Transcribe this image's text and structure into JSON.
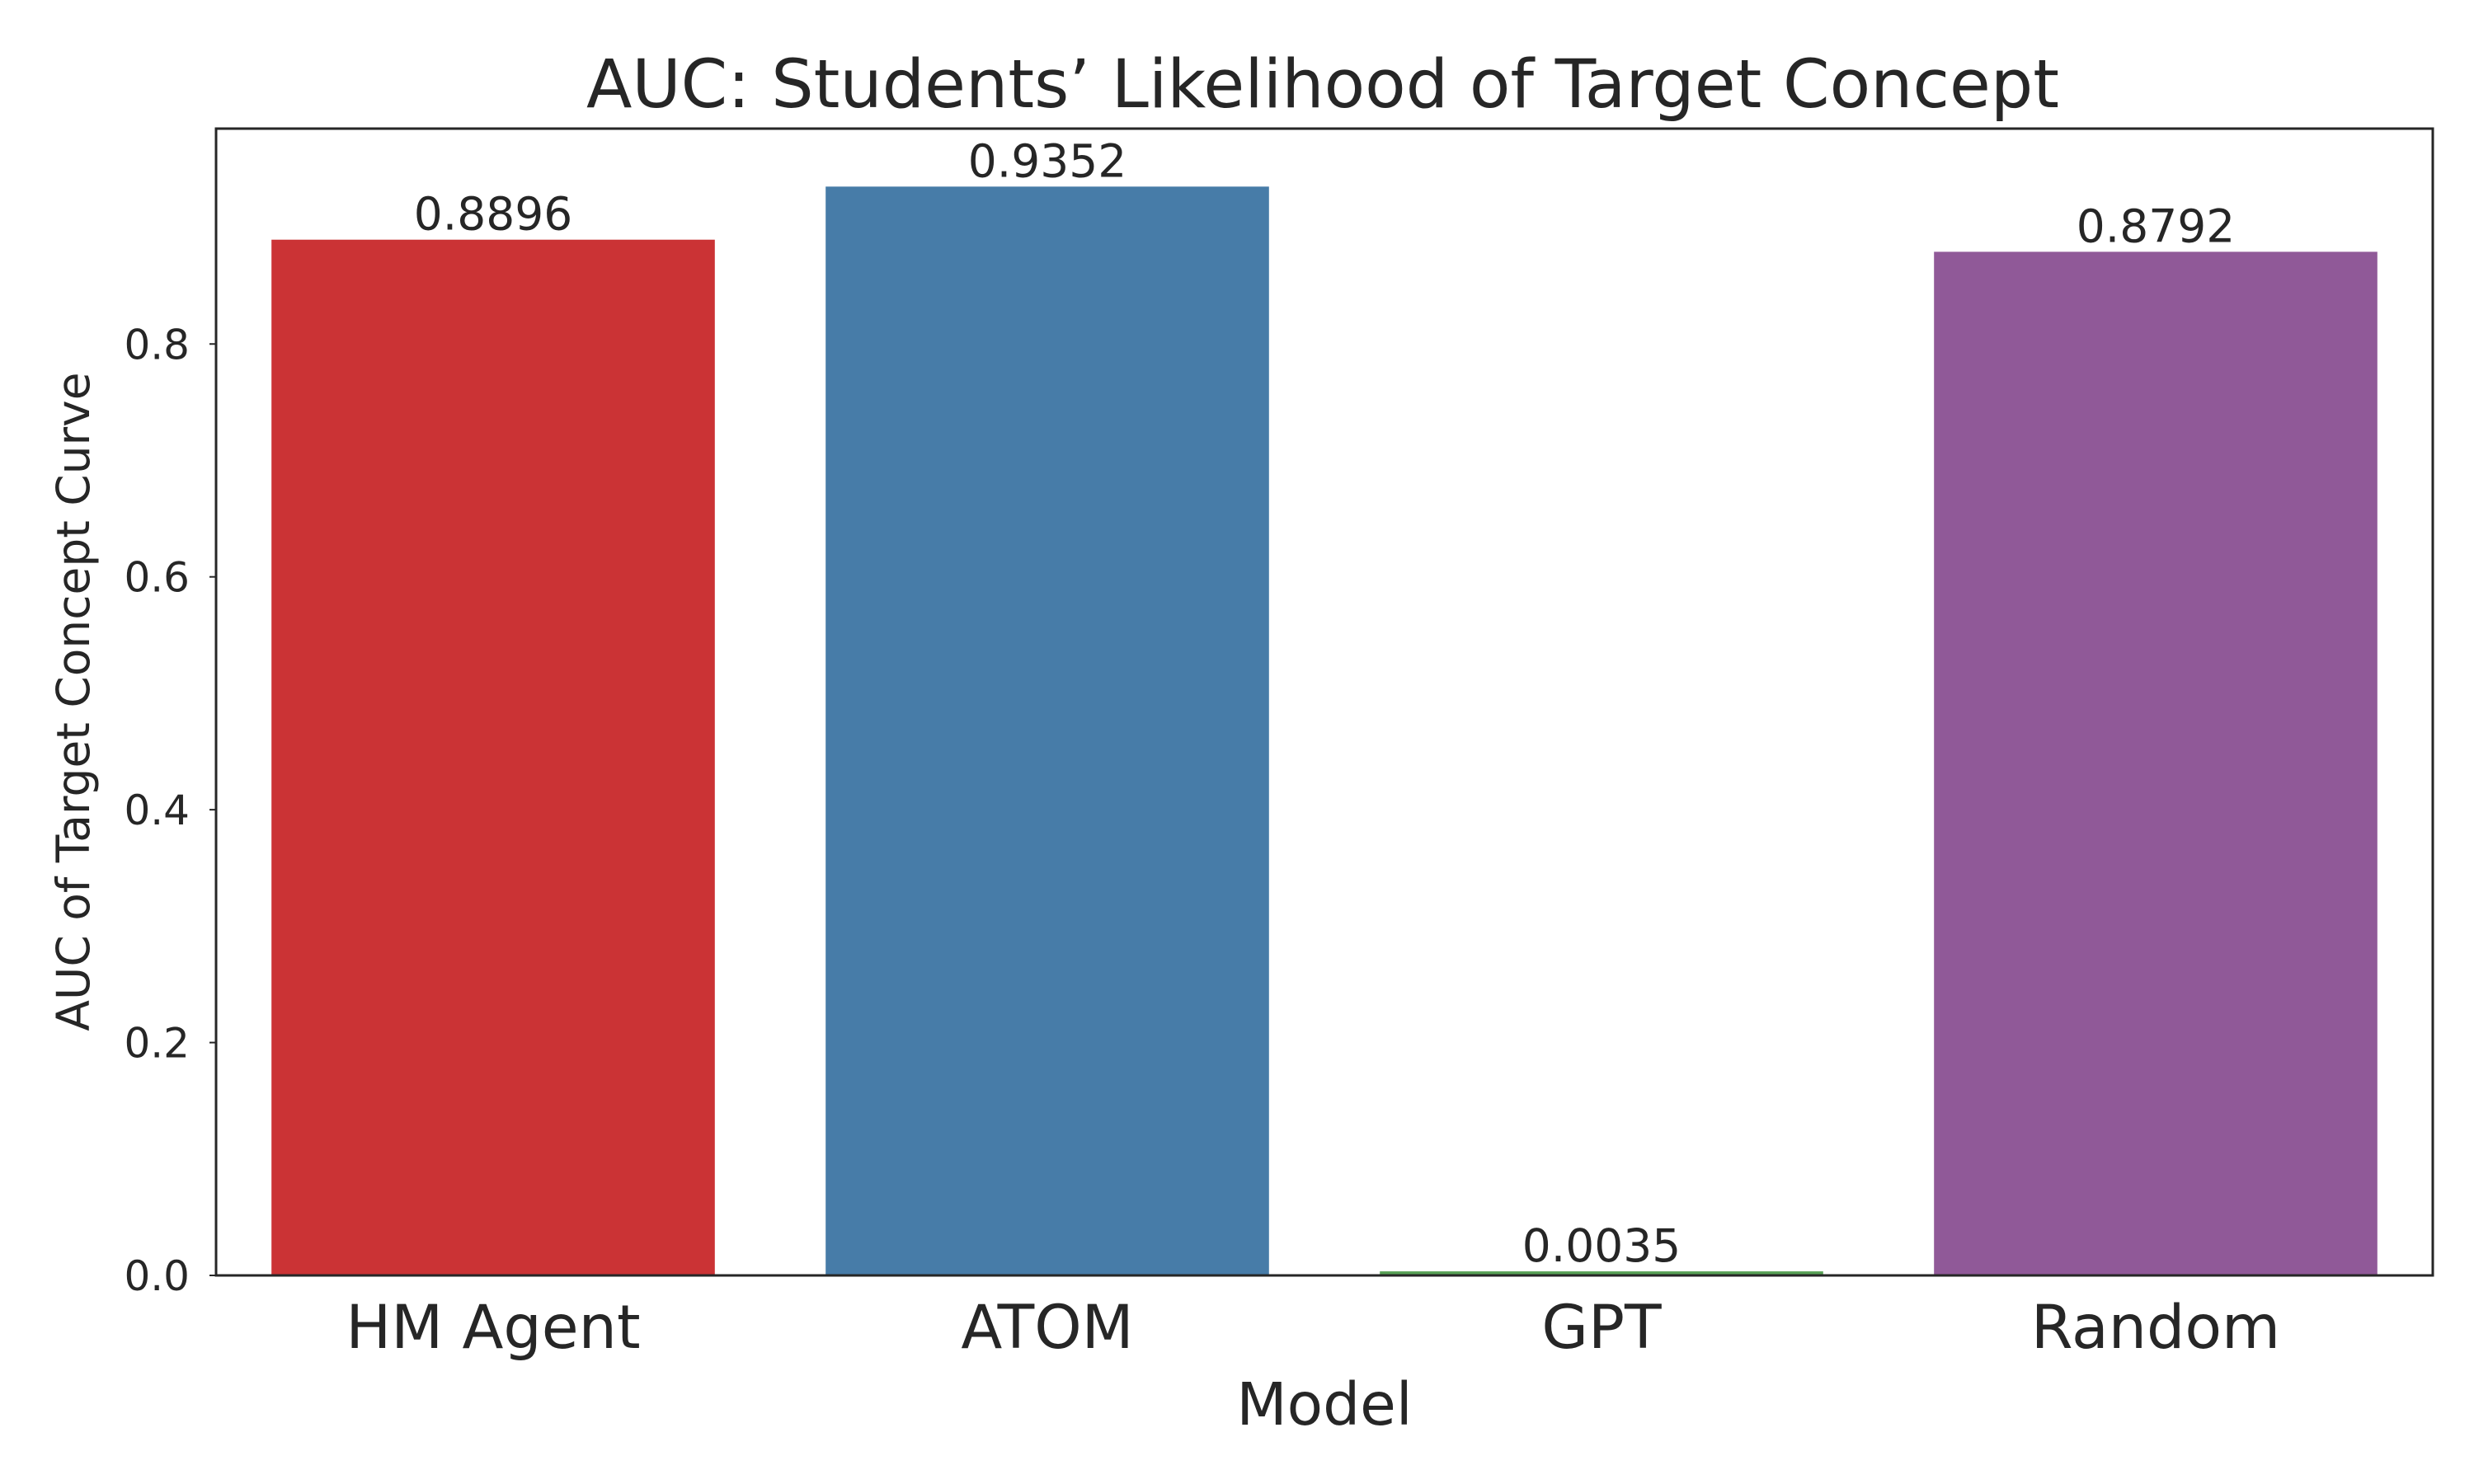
{
  "chart_data": {
    "type": "bar",
    "title": "AUC: Students’ Likelihood of Target Concept",
    "xlabel": "Model",
    "ylabel": "AUC of Target Concept Curve",
    "categories": [
      "HM Agent",
      "ATOM",
      "GPT",
      "Random"
    ],
    "values": [
      0.8896,
      0.9352,
      0.0035,
      0.8792
    ],
    "value_labels": [
      "0.8896",
      "0.9352",
      "0.0035",
      "0.8792"
    ],
    "colors": [
      "#cb3335",
      "#477ca8",
      "#59a257",
      "#905998"
    ],
    "ylim": [
      0,
      0.985
    ],
    "yticks": [
      0.0,
      0.2,
      0.4,
      0.6,
      0.8
    ],
    "ytick_labels": [
      "0.0",
      "0.2",
      "0.4",
      "0.6",
      "0.8"
    ],
    "grid": false,
    "legend": "none"
  }
}
